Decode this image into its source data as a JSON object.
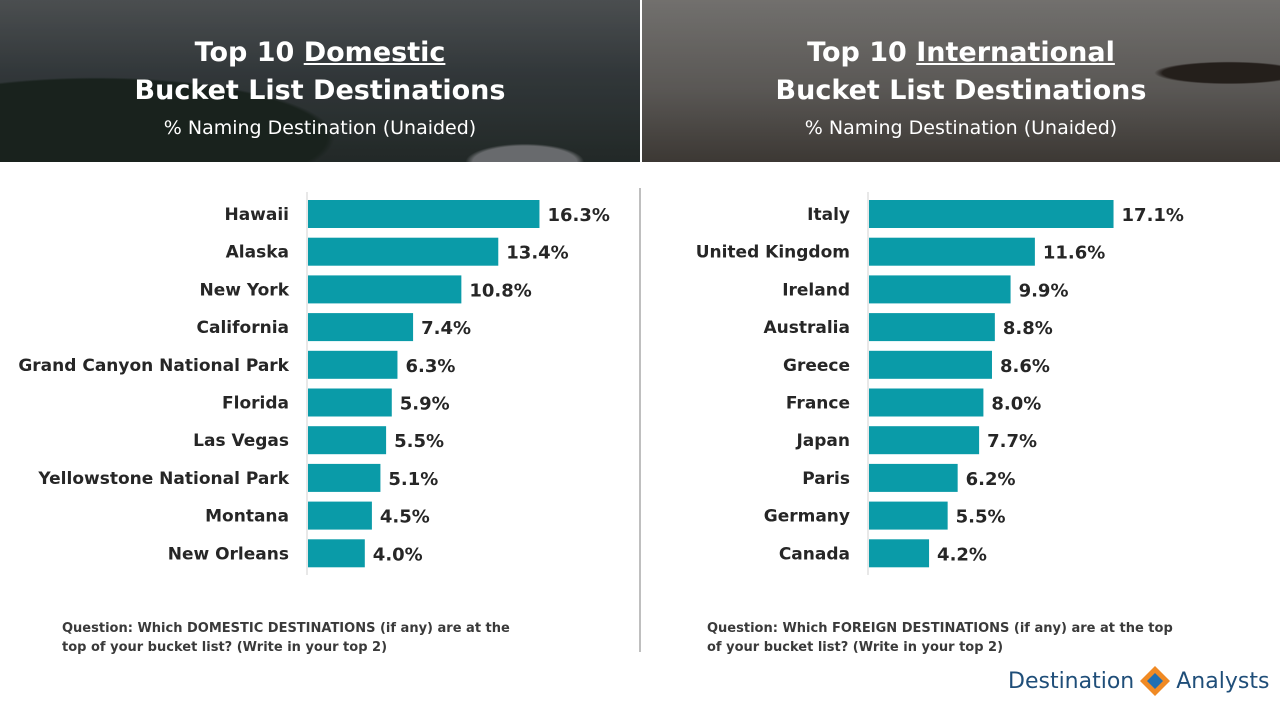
{
  "left_banner": {
    "title_prefix": "Top 10 ",
    "title_emphasis": "Domestic",
    "title_line2": "Bucket List Destinations",
    "subtitle": "% Naming Destination  (Unaided)"
  },
  "right_banner": {
    "title_prefix": "Top 10 ",
    "title_emphasis": "International",
    "title_line2": "Bucket List Destinations",
    "subtitle": "% Naming Destination  (Unaided)"
  },
  "chart_data": [
    {
      "type": "bar",
      "orientation": "horizontal",
      "title": "Top 10 Domestic Bucket List Destinations",
      "subtitle": "% Naming Destination  (Unaided)",
      "categories": [
        "Hawaii",
        "Alaska",
        "New York",
        "California",
        "Grand Canyon National Park",
        "Florida",
        "Las Vegas",
        "Yellowstone National Park",
        "Montana",
        "New Orleans"
      ],
      "values": [
        16.3,
        13.4,
        10.8,
        7.4,
        6.3,
        5.9,
        5.5,
        5.1,
        4.5,
        4.0
      ],
      "value_labels": [
        "16.3%",
        "13.4%",
        "10.8%",
        "7.4%",
        "6.3%",
        "5.9%",
        "5.5%",
        "5.1%",
        "4.5%",
        "4.0%"
      ],
      "color": "#0a9ba8",
      "grid": false
    },
    {
      "type": "bar",
      "orientation": "horizontal",
      "title": "Top 10 International Bucket List Destinations",
      "subtitle": "% Naming Destination  (Unaided)",
      "categories": [
        "Italy",
        "United Kingdom",
        "Ireland",
        "Australia",
        "Greece",
        "France",
        "Japan",
        "Paris",
        "Germany",
        "Canada"
      ],
      "values": [
        17.1,
        11.6,
        9.9,
        8.8,
        8.6,
        8.0,
        7.7,
        6.2,
        5.5,
        4.2
      ],
      "value_labels": [
        "17.1%",
        "11.6%",
        "9.9%",
        "8.8%",
        "8.6%",
        "8.0%",
        "7.7%",
        "6.2%",
        "5.5%",
        "4.2%"
      ],
      "color": "#0a9ba8",
      "grid": false
    }
  ],
  "footnotes": {
    "left": "Question: Which DOMESTIC DESTINATIONS (if any) are at the top of your bucket list?  (Write in your top 2)",
    "right": "Question: Which FOREIGN DESTINATIONS (if any) are at the top of your bucket list?  (Write in your top 2)"
  },
  "logo": {
    "left_text": "Destination",
    "right_text": "Analysts",
    "colors": {
      "text": "#1f4e79",
      "orange": "#f08a24",
      "blue": "#1f6fb2"
    }
  }
}
